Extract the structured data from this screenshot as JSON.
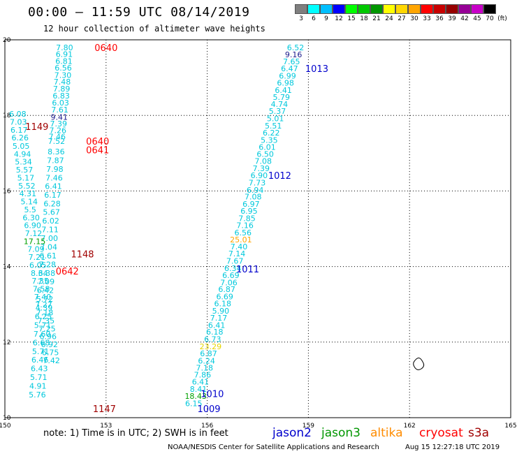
{
  "header": {
    "title": "00:00 – 11:59 UTC 08/14/2019",
    "subtitle": "12 hour collection of altimeter wave heights"
  },
  "colorbar": {
    "labels": [
      "3",
      "6",
      "9",
      "12",
      "15",
      "18",
      "21",
      "24",
      "27",
      "30",
      "33",
      "36",
      "39",
      "42",
      "45",
      "70",
      "(ft)"
    ],
    "colors": [
      "#7f7f7f",
      "#00ffff",
      "#00bfff",
      "#0000ff",
      "#00ff00",
      "#00c800",
      "#009600",
      "#ffff00",
      "#ffd700",
      "#ffa500",
      "#ff0000",
      "#c80000",
      "#960000",
      "#960096",
      "#c800c8",
      "#000000"
    ]
  },
  "footer": {
    "note": "note: 1) Time is in UTC; 2) SWH is in feet",
    "credit": "NOAA/NESDIS Center for Satellite Applications and Research",
    "timestamp": "Aug 15 12:27:18 UTC 2019"
  },
  "chart_data": {
    "type": "scatter",
    "title": "00:00 – 11:59 UTC 08/14/2019",
    "subtitle": "12 hour collection of altimeter wave heights",
    "xlim": [
      150,
      165
    ],
    "ylim": [
      10,
      20
    ],
    "xticks": [
      "150",
      "153",
      "156",
      "159",
      "162",
      "165"
    ],
    "yticks": [
      "10",
      "12",
      "14",
      "16",
      "18",
      "20"
    ],
    "grid": true,
    "legend": {
      "placement": "bottom-right",
      "entries": [
        {
          "name": "jason2",
          "color": "#0000cc"
        },
        {
          "name": "jason3",
          "color": "#009600"
        },
        {
          "name": "altika",
          "color": "#ff8c00"
        },
        {
          "name": "cryosat",
          "color": "#ff0000"
        },
        {
          "name": "s3a",
          "color": "#a00000"
        }
      ]
    },
    "default_value_color": "#00c8dc",
    "series": [
      {
        "points": [
          {
            "x": 151.77,
            "y": 19.8,
            "v": "7.80"
          },
          {
            "x": 151.76,
            "y": 19.62,
            "v": "6.91"
          },
          {
            "x": 151.75,
            "y": 19.44,
            "v": "6.81"
          },
          {
            "x": 151.73,
            "y": 19.26,
            "v": "6.56"
          },
          {
            "x": 151.72,
            "y": 19.07,
            "v": "7.30"
          },
          {
            "x": 151.7,
            "y": 18.89,
            "v": "7.48"
          },
          {
            "x": 151.68,
            "y": 18.71,
            "v": "7.89"
          },
          {
            "x": 151.67,
            "y": 18.52,
            "v": "6.83"
          },
          {
            "x": 151.65,
            "y": 18.34,
            "v": "6.03"
          },
          {
            "x": 151.63,
            "y": 18.15,
            "v": "7.61"
          },
          {
            "x": 151.61,
            "y": 17.96,
            "v": "9.41",
            "color": "#1a1a8c"
          },
          {
            "x": 151.59,
            "y": 17.78,
            "v": "7.39"
          },
          {
            "x": 151.57,
            "y": 17.61,
            "v": "7.26"
          },
          {
            "x": 151.55,
            "y": 17.44,
            "v": "7.46"
          },
          {
            "x": 151.53,
            "y": 17.32,
            "v": "7.52"
          },
          {
            "x": 151.52,
            "y": 17.04,
            "v": "8.36"
          },
          {
            "x": 151.5,
            "y": 16.81,
            "v": "7.87"
          },
          {
            "x": 151.48,
            "y": 16.58,
            "v": "7.98"
          },
          {
            "x": 151.46,
            "y": 16.35,
            "v": "7.46"
          },
          {
            "x": 151.44,
            "y": 16.13,
            "v": "6.41"
          },
          {
            "x": 151.42,
            "y": 15.9,
            "v": "6.17"
          },
          {
            "x": 151.4,
            "y": 15.67,
            "v": "6.28"
          },
          {
            "x": 151.38,
            "y": 15.44,
            "v": "5.67"
          },
          {
            "x": 151.36,
            "y": 15.21,
            "v": "6.02"
          },
          {
            "x": 151.34,
            "y": 14.98,
            "v": "7.11"
          },
          {
            "x": 151.32,
            "y": 14.75,
            "v": "7.00"
          },
          {
            "x": 151.3,
            "y": 14.52,
            "v": "7.04"
          },
          {
            "x": 151.28,
            "y": 14.29,
            "v": "6.61"
          },
          {
            "x": 151.26,
            "y": 14.06,
            "v": "7.28"
          },
          {
            "x": 151.24,
            "y": 13.83,
            "v": "6.38"
          },
          {
            "x": 151.22,
            "y": 13.6,
            "v": "7.09"
          },
          {
            "x": 151.2,
            "y": 13.37,
            "v": "6.42"
          },
          {
            "x": 151.18,
            "y": 13.14,
            "v": "5.72"
          },
          {
            "x": 151.16,
            "y": 12.91,
            "v": "4.39"
          },
          {
            "x": 151.14,
            "y": 12.68,
            "v": "6.25"
          },
          {
            "x": 151.12,
            "y": 12.45,
            "v": "5.71"
          },
          {
            "x": 151.1,
            "y": 12.22,
            "v": "7.60"
          },
          {
            "x": 151.08,
            "y": 11.99,
            "v": "6.68"
          },
          {
            "x": 151.06,
            "y": 11.76,
            "v": "5.71"
          },
          {
            "x": 151.04,
            "y": 11.53,
            "v": "6.46"
          },
          {
            "x": 151.02,
            "y": 11.3,
            "v": "6.43"
          },
          {
            "x": 151.0,
            "y": 11.07,
            "v": "5.71"
          },
          {
            "x": 150.98,
            "y": 10.84,
            "v": "4.91"
          },
          {
            "x": 150.96,
            "y": 10.61,
            "v": "5.76"
          }
        ]
      },
      {
        "points": [
          {
            "x": 150.38,
            "y": 18.04,
            "v": "6.08"
          },
          {
            "x": 150.4,
            "y": 17.83,
            "v": "7.03"
          },
          {
            "x": 150.42,
            "y": 17.62,
            "v": "6.17"
          },
          {
            "x": 150.45,
            "y": 17.41,
            "v": "6.26"
          },
          {
            "x": 150.48,
            "y": 17.19,
            "v": "5.05"
          },
          {
            "x": 150.52,
            "y": 16.98,
            "v": "4.94"
          },
          {
            "x": 150.55,
            "y": 16.77,
            "v": "5.34"
          },
          {
            "x": 150.58,
            "y": 16.56,
            "v": "5.57"
          },
          {
            "x": 150.62,
            "y": 16.35,
            "v": "5.17"
          },
          {
            "x": 150.65,
            "y": 16.14,
            "v": "5.52"
          },
          {
            "x": 150.68,
            "y": 15.93,
            "v": "4.31"
          },
          {
            "x": 150.72,
            "y": 15.72,
            "v": "5.14"
          },
          {
            "x": 150.75,
            "y": 15.51,
            "v": "5.5"
          },
          {
            "x": 150.78,
            "y": 15.3,
            "v": "6.30"
          },
          {
            "x": 150.82,
            "y": 15.09,
            "v": "6.90"
          },
          {
            "x": 150.85,
            "y": 14.88,
            "v": "7.12"
          },
          {
            "x": 150.88,
            "y": 14.67,
            "v": "17.15",
            "color": "#00a000"
          },
          {
            "x": 150.92,
            "y": 14.46,
            "v": "7.09"
          },
          {
            "x": 150.95,
            "y": 14.25,
            "v": "7.21"
          },
          {
            "x": 150.98,
            "y": 14.04,
            "v": "6.05"
          },
          {
            "x": 151.02,
            "y": 13.83,
            "v": "8.34"
          },
          {
            "x": 151.05,
            "y": 13.62,
            "v": "7.35"
          },
          {
            "x": 151.08,
            "y": 13.41,
            "v": "7.58"
          },
          {
            "x": 151.12,
            "y": 13.2,
            "v": "7.40"
          },
          {
            "x": 151.15,
            "y": 12.99,
            "v": "7.27"
          },
          {
            "x": 151.18,
            "y": 12.78,
            "v": "7.18"
          },
          {
            "x": 151.22,
            "y": 12.57,
            "v": "7.35"
          },
          {
            "x": 151.25,
            "y": 12.36,
            "v": "7.25"
          },
          {
            "x": 151.28,
            "y": 12.15,
            "v": "6.96"
          },
          {
            "x": 151.32,
            "y": 11.94,
            "v": "6.92"
          },
          {
            "x": 151.35,
            "y": 11.73,
            "v": "6.75"
          },
          {
            "x": 151.38,
            "y": 11.52,
            "v": "7.42"
          }
        ]
      },
      {
        "points": [
          {
            "x": 158.62,
            "y": 19.8,
            "v": "6.52"
          },
          {
            "x": 158.56,
            "y": 19.61,
            "v": "9.16",
            "color": "#1a1a8c"
          },
          {
            "x": 158.5,
            "y": 19.43,
            "v": "7.65"
          },
          {
            "x": 158.44,
            "y": 19.24,
            "v": "6.47"
          },
          {
            "x": 158.38,
            "y": 19.05,
            "v": "6.99"
          },
          {
            "x": 158.32,
            "y": 18.86,
            "v": "6.98"
          },
          {
            "x": 158.26,
            "y": 18.67,
            "v": "6.41"
          },
          {
            "x": 158.2,
            "y": 18.48,
            "v": "5.79"
          },
          {
            "x": 158.14,
            "y": 18.3,
            "v": "4.74"
          },
          {
            "x": 158.08,
            "y": 18.11,
            "v": "5.37"
          },
          {
            "x": 158.02,
            "y": 17.92,
            "v": "5.01"
          },
          {
            "x": 157.96,
            "y": 17.73,
            "v": "5.51"
          },
          {
            "x": 157.9,
            "y": 17.54,
            "v": "6.22"
          },
          {
            "x": 157.84,
            "y": 17.35,
            "v": "5.35"
          },
          {
            "x": 157.78,
            "y": 17.16,
            "v": "6.01"
          },
          {
            "x": 157.72,
            "y": 16.98,
            "v": "6.50"
          },
          {
            "x": 157.66,
            "y": 16.79,
            "v": "7.08"
          },
          {
            "x": 157.6,
            "y": 16.6,
            "v": "7.39"
          },
          {
            "x": 157.54,
            "y": 16.41,
            "v": "6.90"
          },
          {
            "x": 157.48,
            "y": 16.22,
            "v": "7.73"
          },
          {
            "x": 157.42,
            "y": 16.03,
            "v": "6.94"
          },
          {
            "x": 157.36,
            "y": 15.85,
            "v": "7.08"
          },
          {
            "x": 157.3,
            "y": 15.66,
            "v": "6.97"
          },
          {
            "x": 157.24,
            "y": 15.47,
            "v": "6.95"
          },
          {
            "x": 157.18,
            "y": 15.28,
            "v": "7.85"
          },
          {
            "x": 157.12,
            "y": 15.09,
            "v": "7.16"
          },
          {
            "x": 157.06,
            "y": 14.9,
            "v": "6.56"
          },
          {
            "x": 157.0,
            "y": 14.71,
            "v": "25.01",
            "color": "#ffa500"
          },
          {
            "x": 156.94,
            "y": 14.53,
            "v": "7.40"
          },
          {
            "x": 156.88,
            "y": 14.34,
            "v": "7.14"
          },
          {
            "x": 156.82,
            "y": 14.15,
            "v": "7.67"
          },
          {
            "x": 156.76,
            "y": 13.96,
            "v": "6.34"
          },
          {
            "x": 156.7,
            "y": 13.77,
            "v": "6.69"
          },
          {
            "x": 156.64,
            "y": 13.58,
            "v": "7.06"
          },
          {
            "x": 156.58,
            "y": 13.4,
            "v": "6.87"
          },
          {
            "x": 156.52,
            "y": 13.21,
            "v": "6.69"
          },
          {
            "x": 156.46,
            "y": 13.02,
            "v": "6.18"
          },
          {
            "x": 156.4,
            "y": 12.83,
            "v": "5.90"
          },
          {
            "x": 156.34,
            "y": 12.64,
            "v": "7.17"
          },
          {
            "x": 156.28,
            "y": 12.45,
            "v": "6.41"
          },
          {
            "x": 156.22,
            "y": 12.27,
            "v": "6.18"
          },
          {
            "x": 156.16,
            "y": 12.08,
            "v": "6.73"
          },
          {
            "x": 156.1,
            "y": 11.89,
            "v": "23.29",
            "color": "#e6d600"
          },
          {
            "x": 156.04,
            "y": 11.7,
            "v": "6.87"
          },
          {
            "x": 155.98,
            "y": 11.51,
            "v": "6.24"
          },
          {
            "x": 155.92,
            "y": 11.32,
            "v": "7.18"
          },
          {
            "x": 155.86,
            "y": 11.14,
            "v": "7.86"
          },
          {
            "x": 155.8,
            "y": 10.95,
            "v": "6.41"
          },
          {
            "x": 155.74,
            "y": 10.76,
            "v": "8.41"
          },
          {
            "x": 155.66,
            "y": 10.57,
            "v": "18.43",
            "color": "#00a000"
          },
          {
            "x": 155.6,
            "y": 10.38,
            "v": "6.15"
          }
        ]
      }
    ],
    "pass_labels": [
      {
        "x": 153.0,
        "y": 19.8,
        "text": "0640",
        "color": "#ff0000"
      },
      {
        "x": 159.25,
        "y": 19.24,
        "text": "1013",
        "color": "#0000cc"
      },
      {
        "x": 150.95,
        "y": 17.71,
        "text": "1149",
        "color": "#a00000"
      },
      {
        "x": 152.75,
        "y": 17.32,
        "text": "0640",
        "color": "#ff0000"
      },
      {
        "x": 152.75,
        "y": 17.09,
        "text": "0641",
        "color": "#ff0000"
      },
      {
        "x": 158.15,
        "y": 16.41,
        "text": "1012",
        "color": "#0000cc"
      },
      {
        "x": 152.3,
        "y": 14.33,
        "text": "1148",
        "color": "#a00000"
      },
      {
        "x": 157.2,
        "y": 13.94,
        "text": "1011",
        "color": "#0000cc"
      },
      {
        "x": 151.85,
        "y": 13.88,
        "text": "0642",
        "color": "#ff0000"
      },
      {
        "x": 156.15,
        "y": 10.64,
        "text": "1010",
        "color": "#0000cc"
      },
      {
        "x": 152.95,
        "y": 10.24,
        "text": "1147",
        "color": "#a00000"
      },
      {
        "x": 156.05,
        "y": 10.24,
        "text": "1009",
        "color": "#0000cc"
      }
    ]
  }
}
